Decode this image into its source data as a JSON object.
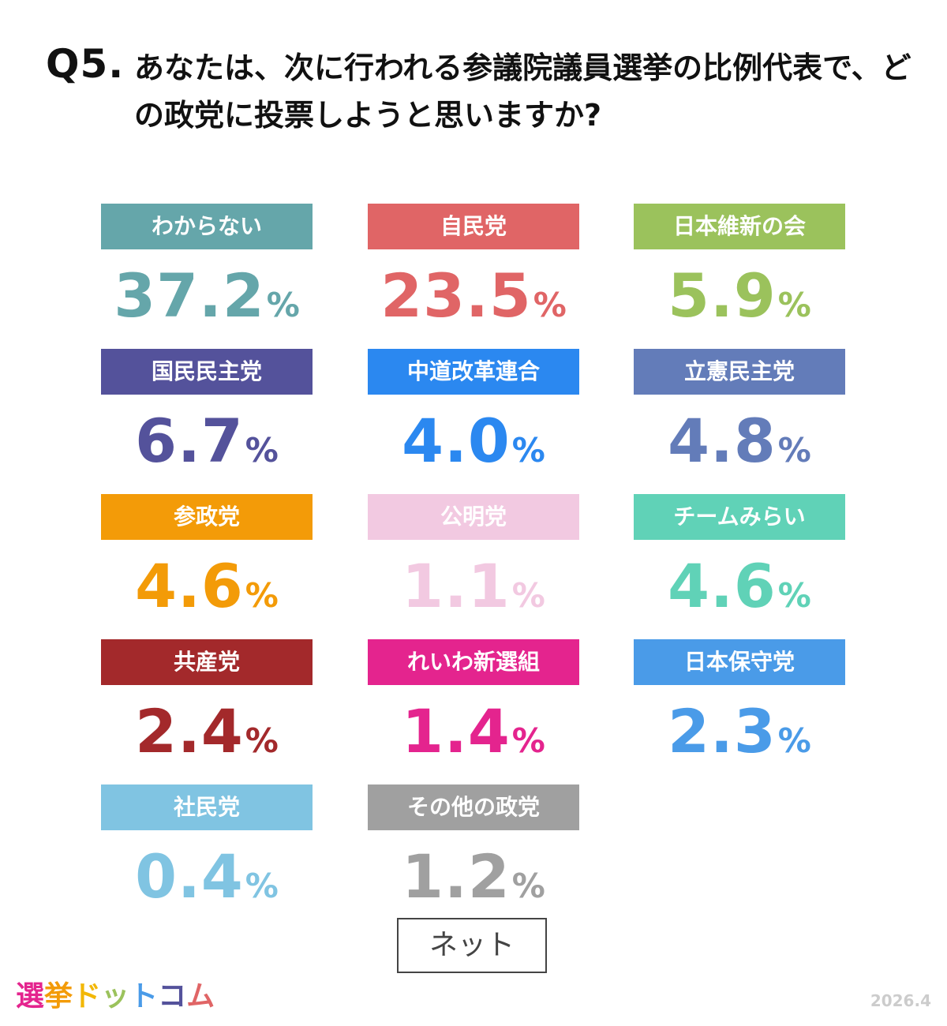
{
  "question": {
    "number": "Q5.",
    "text": "あなたは、次に行われる参議院議員選挙の比例代表で、どの政党に投票しようと思いますか?"
  },
  "chart_data": {
    "type": "table",
    "unit": "%",
    "items": [
      {
        "label": "わからない",
        "value": "37.2",
        "color": "#65a6aa"
      },
      {
        "label": "自民党",
        "value": "23.5",
        "color": "#e06566"
      },
      {
        "label": "日本維新の会",
        "value": "5.9",
        "color": "#9bc25c"
      },
      {
        "label": "国民民主党",
        "value": "6.7",
        "color": "#54529b"
      },
      {
        "label": "中道改革連合",
        "value": "4.0",
        "color": "#2b88f0"
      },
      {
        "label": "立憲民主党",
        "value": "4.8",
        "color": "#637cb9"
      },
      {
        "label": "参政党",
        "value": "4.6",
        "color": "#f39b08"
      },
      {
        "label": "公明党",
        "value": "1.1",
        "color": "#f2c9e1"
      },
      {
        "label": "チームみらい",
        "value": "4.6",
        "color": "#60d2b7"
      },
      {
        "label": "共産党",
        "value": "2.4",
        "color": "#a3292b"
      },
      {
        "label": "れいわ新選組",
        "value": "1.4",
        "color": "#e4248e"
      },
      {
        "label": "日本保守党",
        "value": "2.3",
        "color": "#4a9be8"
      },
      {
        "label": "社民党",
        "value": "0.4",
        "color": "#80c4e2"
      },
      {
        "label": "その他の政党",
        "value": "1.2",
        "color": "#a0a0a0"
      }
    ]
  },
  "survey_method": "ネット",
  "logo": {
    "chars": [
      "選",
      "挙",
      "ド",
      "ッ",
      "ト",
      "コ",
      "ム"
    ],
    "colors": [
      "#e4248e",
      "#f39b08",
      "#f2b705",
      "#9bc25c",
      "#4a9be8",
      "#54529b",
      "#e06566"
    ]
  },
  "date": "2026.4"
}
